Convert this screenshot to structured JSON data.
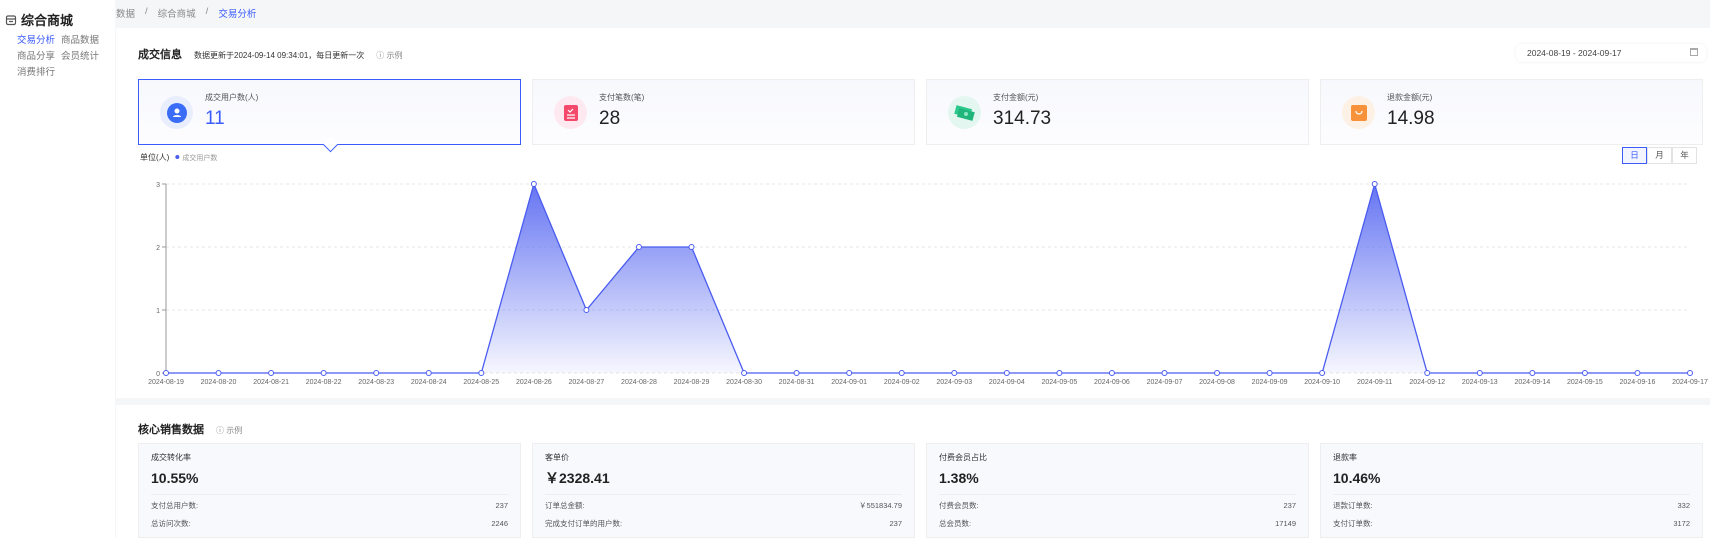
{
  "sidebar": {
    "title": "综合商城",
    "items": [
      {
        "label": "交易分析",
        "active": true
      },
      {
        "label": "商品数据"
      },
      {
        "label": "商品分享"
      },
      {
        "label": "会员统计"
      },
      {
        "label": "消费排行"
      }
    ]
  },
  "breadcrumb": [
    "数据",
    "综合商城",
    "交易分析"
  ],
  "deal": {
    "title": "成交信息",
    "note": "数据更新于2024-09-14 09:34:01，每日更新一次",
    "example": "示例",
    "date_range": "2024-08-19 - 2024-09-17",
    "cards": [
      {
        "label": "成交用户数(人)",
        "value": "11",
        "icon": "user-icon",
        "color": "#3b6cf6"
      },
      {
        "label": "支付笔数(笔)",
        "value": "28",
        "icon": "order-icon",
        "color": "#f5496b"
      },
      {
        "label": "支付金额(元)",
        "value": "314.73",
        "icon": "money-icon",
        "color": "#2cc98c"
      },
      {
        "label": "退款金额(元)",
        "value": "14.98",
        "icon": "bag-icon",
        "color": "#f7923a"
      }
    ],
    "tabs": [
      "日",
      "月",
      "年"
    ]
  },
  "chart_data": {
    "type": "area",
    "unit_label": "单位(人)",
    "legend": "成交用户数",
    "legend_placement": "top-left",
    "color": "#4a5cf0",
    "ylim": [
      0,
      3
    ],
    "yticks": [
      0,
      1,
      2,
      3
    ],
    "grid": true,
    "x": [
      "2024-08-19",
      "2024-08-20",
      "2024-08-21",
      "2024-08-22",
      "2024-08-23",
      "2024-08-24",
      "2024-08-25",
      "2024-08-26",
      "2024-08-27",
      "2024-08-28",
      "2024-08-29",
      "2024-08-30",
      "2024-08-31",
      "2024-09-01",
      "2024-09-02",
      "2024-09-03",
      "2024-09-04",
      "2024-09-05",
      "2024-09-06",
      "2024-09-07",
      "2024-09-08",
      "2024-09-09",
      "2024-09-10",
      "2024-09-11",
      "2024-09-12",
      "2024-09-13",
      "2024-09-14",
      "2024-09-15",
      "2024-09-16",
      "2024-09-17"
    ],
    "values": [
      0,
      0,
      0,
      0,
      0,
      0,
      0,
      3,
      1,
      2,
      2,
      0,
      0,
      0,
      0,
      0,
      0,
      0,
      0,
      0,
      0,
      0,
      0,
      3,
      0,
      0,
      0,
      0,
      0,
      0
    ]
  },
  "core": {
    "title": "核心销售数据",
    "example": "示例",
    "cards": [
      {
        "title": "成交转化率",
        "value": "10.55%",
        "rows": [
          {
            "k": "支付总用户数:",
            "v": "237"
          },
          {
            "k": "总访问次数:",
            "v": "2246"
          }
        ]
      },
      {
        "title": "客单价",
        "value": "￥2328.41",
        "rows": [
          {
            "k": "订单总金额:",
            "v": "￥551834.79"
          },
          {
            "k": "完成支付订单的用户数:",
            "v": "237"
          }
        ]
      },
      {
        "title": "付费会员占比",
        "value": "1.38%",
        "rows": [
          {
            "k": "付费会员数:",
            "v": "237"
          },
          {
            "k": "总会员数:",
            "v": "17149"
          }
        ]
      },
      {
        "title": "退款率",
        "value": "10.46%",
        "rows": [
          {
            "k": "退款订单数:",
            "v": "332"
          },
          {
            "k": "支付订单数:",
            "v": "3172"
          }
        ]
      }
    ]
  }
}
